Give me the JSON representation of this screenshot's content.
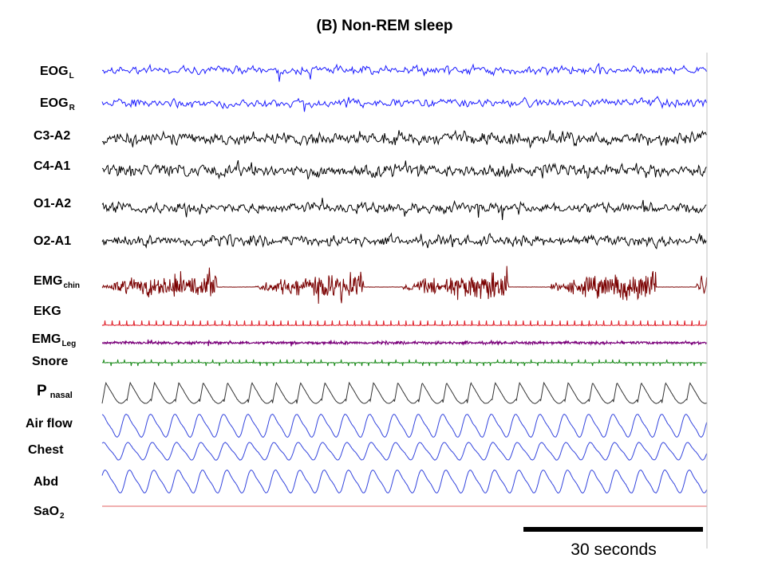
{
  "title": "(B) Non-REM sleep",
  "channels": [
    {
      "main": "EOG",
      "sub": "L",
      "color": "#1a1aff"
    },
    {
      "main": "EOG",
      "sub": "R",
      "color": "#1a1aff"
    },
    {
      "main": "C3-A2",
      "sub": "",
      "color": "#000000"
    },
    {
      "main": "C4-A1",
      "sub": "",
      "color": "#000000"
    },
    {
      "main": "O1-A2",
      "sub": "",
      "color": "#000000"
    },
    {
      "main": "O2-A1",
      "sub": "",
      "color": "#000000"
    },
    {
      "main": "EMG",
      "sub": "chin",
      "color": "#7a0000"
    },
    {
      "main": "EKG",
      "sub": "",
      "color": "#e0202a"
    },
    {
      "main": "EMG",
      "sub": "Leg",
      "color": "#7a007a"
    },
    {
      "main": "Snore",
      "sub": "",
      "color": "#1a8a1a"
    },
    {
      "main": "P",
      "sub": "nasal",
      "color": "#333333"
    },
    {
      "main": "Air flow",
      "sub": "",
      "color": "#3344dd"
    },
    {
      "main": "Chest",
      "sub": "",
      "color": "#3344dd"
    },
    {
      "main": "Abd",
      "sub": "",
      "color": "#3344dd"
    },
    {
      "main": "SaO",
      "sub": "2",
      "color": "#e06060"
    }
  ],
  "scale_bar": {
    "label": "30 seconds",
    "seconds": 30
  },
  "chart_data": {
    "type": "line",
    "title": "(B) Non-REM sleep",
    "xlabel": "",
    "ylabel": "",
    "series": [
      {
        "name": "EOG L"
      },
      {
        "name": "EOG R"
      },
      {
        "name": "C3-A2"
      },
      {
        "name": "C4-A1"
      },
      {
        "name": "O1-A2"
      },
      {
        "name": "O2-A1"
      },
      {
        "name": "EMG chin"
      },
      {
        "name": "EKG"
      },
      {
        "name": "EMG Leg"
      },
      {
        "name": "Snore"
      },
      {
        "name": "P nasal"
      },
      {
        "name": "Air flow"
      },
      {
        "name": "Chest"
      },
      {
        "name": "Abd"
      },
      {
        "name": "SaO2"
      }
    ],
    "scale_bar_seconds": 30,
    "grid": false
  }
}
